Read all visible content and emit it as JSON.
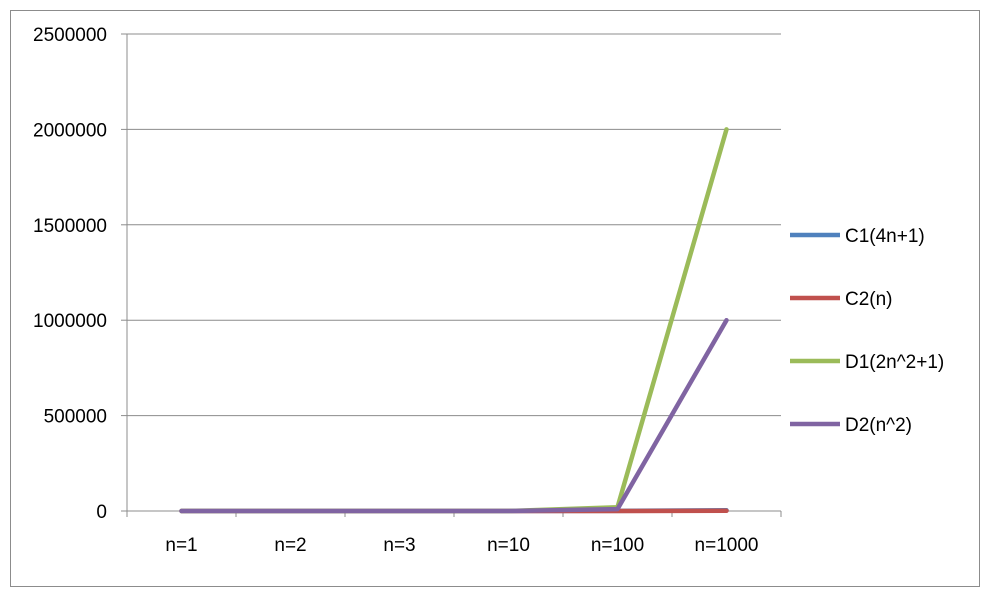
{
  "chart_data": {
    "type": "line",
    "title": "",
    "xlabel": "",
    "ylabel": "",
    "categories": [
      "n=1",
      "n=2",
      "n=3",
      "n=10",
      "n=100",
      "n=1000"
    ],
    "ylim": [
      0,
      2500000
    ],
    "yticks": [
      0,
      500000,
      1000000,
      1500000,
      2000000,
      2500000
    ],
    "ytick_labels": [
      "0",
      "500000",
      "1000000",
      "1500000",
      "2000000",
      "2500000"
    ],
    "grid": true,
    "legend_position": "right",
    "series": [
      {
        "name": "C1(4n+1)",
        "color": "#4f81bd",
        "values": [
          5,
          9,
          13,
          41,
          401,
          4001
        ]
      },
      {
        "name": "C2(n)",
        "color": "#c0504d",
        "values": [
          1,
          2,
          3,
          10,
          100,
          1000
        ]
      },
      {
        "name": "D1(2n^2+1)",
        "color": "#9bbb59",
        "values": [
          3,
          9,
          19,
          201,
          20001,
          2000001
        ]
      },
      {
        "name": "D2(n^2)",
        "color": "#8064a2",
        "values": [
          1,
          4,
          9,
          100,
          10000,
          1000000
        ]
      }
    ]
  }
}
